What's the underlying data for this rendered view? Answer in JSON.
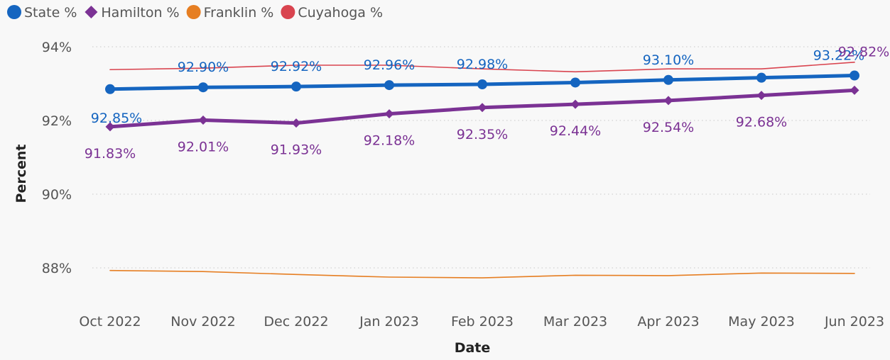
{
  "chart_data": {
    "type": "line",
    "xlabel": "Date",
    "ylabel": "Percent",
    "categories": [
      "Oct 2022",
      "Nov 2022",
      "Dec 2022",
      "Jan 2023",
      "Feb 2023",
      "Mar 2023",
      "Apr 2023",
      "May 2023",
      "Jun 2023"
    ],
    "ylim": [
      87,
      94.2
    ],
    "yticks": [
      88,
      90,
      92,
      94
    ],
    "ytick_labels": [
      "88%",
      "90%",
      "92%",
      "94%"
    ],
    "grid": true,
    "legend_position": "top-left",
    "series": [
      {
        "name": "State %",
        "key": "state",
        "color": "#1565c0",
        "marker": "circle",
        "emphasis": "thick",
        "values": [
          92.85,
          92.9,
          92.92,
          92.96,
          92.98,
          93.03,
          93.1,
          93.16,
          93.22
        ],
        "data_labels": [
          "92.85%",
          "92.90%",
          "92.92%",
          "92.96%",
          "92.98%",
          "",
          "93.10%",
          "",
          "93.22%"
        ],
        "label_position": "above"
      },
      {
        "name": "Hamilton %",
        "key": "hamilton",
        "color": "#7b3294",
        "marker": "diamond",
        "emphasis": "thick",
        "values": [
          91.83,
          92.01,
          91.93,
          92.18,
          92.35,
          92.44,
          92.54,
          92.68,
          92.82
        ],
        "data_labels": [
          "91.83%",
          "92.01%",
          "91.93%",
          "92.18%",
          "92.35%",
          "92.44%",
          "92.54%",
          "92.68%",
          "92.82%"
        ],
        "label_position": "below"
      },
      {
        "name": "Franklin %",
        "key": "franklin",
        "color": "#e67e22",
        "marker": "circle",
        "emphasis": "thin",
        "values": [
          87.93,
          87.9,
          87.82,
          87.75,
          87.73,
          87.8,
          87.79,
          87.86,
          87.85
        ]
      },
      {
        "name": "Cuyahoga %",
        "key": "cuyahoga",
        "color": "#d9444f",
        "marker": "circle",
        "emphasis": "thin",
        "values": [
          93.38,
          93.42,
          93.5,
          93.5,
          93.4,
          93.32,
          93.4,
          93.4,
          93.58
        ]
      }
    ]
  }
}
